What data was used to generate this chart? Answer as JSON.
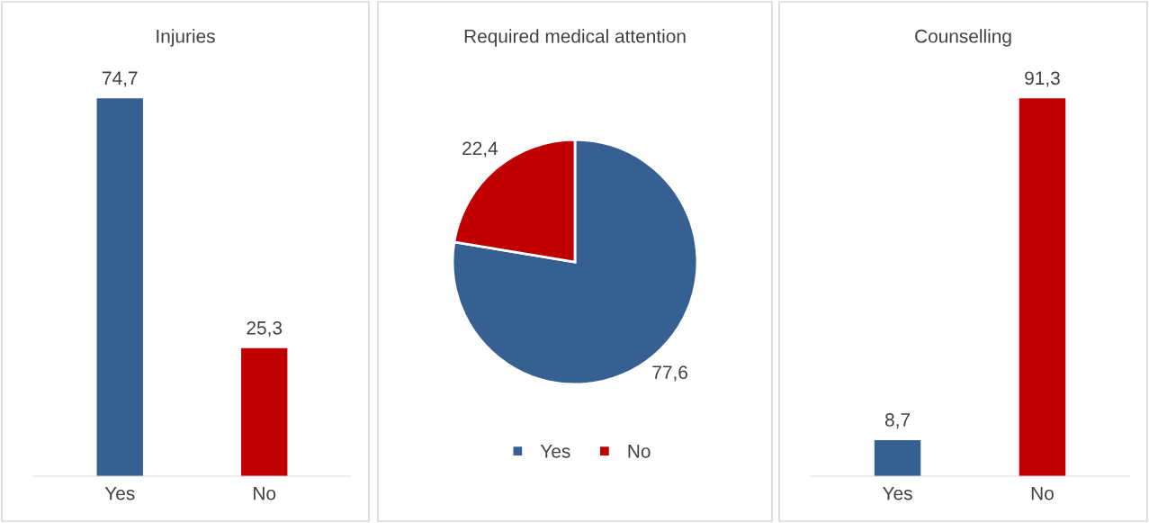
{
  "chart_data": [
    {
      "type": "bar",
      "title": "Injuries",
      "categories": [
        "Yes",
        "No"
      ],
      "values": [
        74.7,
        25.3
      ],
      "colors": [
        "#376092",
        "#c00000"
      ],
      "value_labels": [
        "74,7",
        "25,3"
      ],
      "grid": false,
      "legend": false
    },
    {
      "type": "pie",
      "title": "Required medical attention",
      "categories": [
        "Yes",
        "No"
      ],
      "values": [
        77.6,
        22.4
      ],
      "colors": [
        "#376092",
        "#c00000"
      ],
      "value_labels": [
        "77,6",
        "22,4"
      ],
      "legend": "bottom"
    },
    {
      "type": "bar",
      "title": "Counselling",
      "categories": [
        "Yes",
        "No"
      ],
      "values": [
        8.7,
        91.3
      ],
      "colors": [
        "#376092",
        "#c00000"
      ],
      "value_labels": [
        "8,7",
        "91,3"
      ],
      "grid": false,
      "legend": false
    }
  ]
}
